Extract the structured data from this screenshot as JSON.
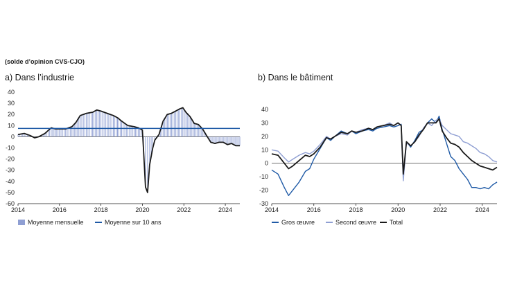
{
  "subtitle": "(solde d’opinion CVS-CJO)",
  "colors": {
    "dark": "#1a1a1a",
    "blue": "#1f5aa6",
    "lightblue": "#8f9fd3",
    "bar": "#8f9fd3",
    "avg": "#1f5aa6"
  },
  "chart_data": [
    {
      "type": "bar",
      "title": "a)  Dans l’industrie",
      "ylim": [
        -60,
        40
      ],
      "yticks": [
        40,
        30,
        20,
        10,
        0,
        -10,
        -20,
        -30,
        -40,
        -50,
        -60
      ],
      "xlim": [
        2014,
        2024.7
      ],
      "xticks": [
        2014,
        2016,
        2018,
        2020,
        2022,
        2024
      ],
      "grid": false,
      "legend": "bottom",
      "series": [
        {
          "name": "Moyenne mensuelle",
          "kind": "bar+line",
          "color": "#8f9fd3",
          "x": [
            2014.0,
            2014.3,
            2014.6,
            2014.8,
            2015.0,
            2015.3,
            2015.6,
            2015.8,
            2016.0,
            2016.3,
            2016.6,
            2016.8,
            2017.0,
            2017.3,
            2017.6,
            2017.8,
            2018.0,
            2018.3,
            2018.6,
            2018.8,
            2019.0,
            2019.3,
            2019.6,
            2019.8,
            2020.0,
            2020.05,
            2020.15,
            2020.25,
            2020.35,
            2020.5,
            2020.6,
            2020.8,
            2021.0,
            2021.2,
            2021.4,
            2021.6,
            2021.8,
            2021.95,
            2022.1,
            2022.3,
            2022.5,
            2022.7,
            2022.9,
            2023.1,
            2023.3,
            2023.5,
            2023.7,
            2023.9,
            2024.1,
            2024.3,
            2024.5,
            2024.7
          ],
          "values": [
            2,
            3,
            1,
            -1,
            0,
            3,
            8,
            7,
            7,
            7,
            9,
            13,
            19,
            21,
            22,
            24,
            23,
            21,
            19,
            17,
            14,
            10,
            9,
            8,
            6,
            -10,
            -45,
            -50,
            -25,
            -10,
            -3,
            2,
            14,
            20,
            21,
            23,
            25,
            26,
            22,
            18,
            12,
            11,
            7,
            1,
            -5,
            -6,
            -5,
            -5,
            -7,
            -6,
            -8,
            -8
          ]
        },
        {
          "name": "Moyenne sur 10 ans",
          "kind": "hline",
          "color": "#1f5aa6",
          "value": 7.5
        }
      ]
    },
    {
      "type": "line",
      "title": "b)  Dans le bâtiment",
      "ylim": [
        -30,
        40
      ],
      "yticks": [
        40,
        30,
        20,
        10,
        0,
        -10,
        -20,
        -30
      ],
      "xlim": [
        2014,
        2024.7
      ],
      "xticks": [
        2014,
        2016,
        2018,
        2020,
        2022,
        2024
      ],
      "grid": false,
      "legend": "bottom",
      "series": [
        {
          "name": "Gros œuvre",
          "color": "#1f5aa6",
          "x": [
            2014.0,
            2014.3,
            2014.6,
            2014.8,
            2015.0,
            2015.3,
            2015.6,
            2015.8,
            2016.0,
            2016.3,
            2016.6,
            2016.8,
            2017.0,
            2017.3,
            2017.6,
            2017.8,
            2018.0,
            2018.3,
            2018.6,
            2018.8,
            2019.0,
            2019.3,
            2019.6,
            2019.8,
            2020.0,
            2020.15,
            2020.25,
            2020.4,
            2020.6,
            2020.8,
            2021.0,
            2021.2,
            2021.4,
            2021.6,
            2021.8,
            2021.95,
            2022.1,
            2022.3,
            2022.5,
            2022.7,
            2022.9,
            2023.1,
            2023.3,
            2023.5,
            2023.7,
            2023.9,
            2024.1,
            2024.3,
            2024.5,
            2024.7
          ],
          "values": [
            -5,
            -8,
            -18,
            -24,
            -20,
            -14,
            -6,
            -4,
            3,
            11,
            19,
            17,
            20,
            24,
            22,
            24,
            22,
            24,
            25,
            24,
            26,
            27,
            28,
            27,
            28,
            29,
            -10,
            16,
            12,
            17,
            23,
            25,
            30,
            33,
            30,
            35,
            25,
            15,
            5,
            2,
            -4,
            -8,
            -12,
            -18,
            -18,
            -19,
            -18,
            -19,
            -16,
            -14
          ]
        },
        {
          "name": "Second œuvre",
          "color": "#8f9fd3",
          "x": [
            2014.0,
            2014.3,
            2014.6,
            2014.8,
            2015.0,
            2015.3,
            2015.6,
            2015.8,
            2016.0,
            2016.3,
            2016.6,
            2016.8,
            2017.0,
            2017.3,
            2017.6,
            2017.8,
            2018.0,
            2018.3,
            2018.6,
            2018.8,
            2019.0,
            2019.3,
            2019.6,
            2019.8,
            2020.0,
            2020.15,
            2020.25,
            2020.4,
            2020.6,
            2020.8,
            2021.0,
            2021.2,
            2021.4,
            2021.6,
            2021.8,
            2021.95,
            2022.1,
            2022.3,
            2022.5,
            2022.7,
            2022.9,
            2023.1,
            2023.3,
            2023.5,
            2023.7,
            2023.9,
            2024.1,
            2024.3,
            2024.5,
            2024.7
          ],
          "values": [
            10,
            9,
            4,
            1,
            3,
            6,
            8,
            7,
            9,
            14,
            20,
            18,
            20,
            22,
            21,
            24,
            23,
            25,
            26,
            25,
            27,
            28,
            30,
            28,
            30,
            28,
            -13,
            15,
            13,
            16,
            20,
            26,
            30,
            28,
            32,
            33,
            28,
            25,
            22,
            21,
            20,
            16,
            15,
            13,
            11,
            8,
            7,
            5,
            2,
            1
          ]
        },
        {
          "name": "Total",
          "color": "#1a1a1a",
          "x": [
            2014.0,
            2014.3,
            2014.6,
            2014.8,
            2015.0,
            2015.3,
            2015.6,
            2015.8,
            2016.0,
            2016.3,
            2016.6,
            2016.8,
            2017.0,
            2017.3,
            2017.6,
            2017.8,
            2018.0,
            2018.3,
            2018.6,
            2018.8,
            2019.0,
            2019.3,
            2019.6,
            2019.8,
            2020.0,
            2020.15,
            2020.25,
            2020.4,
            2020.6,
            2020.8,
            2021.0,
            2021.2,
            2021.4,
            2021.6,
            2021.8,
            2021.95,
            2022.1,
            2022.3,
            2022.5,
            2022.7,
            2022.9,
            2023.1,
            2023.3,
            2023.5,
            2023.7,
            2023.9,
            2024.1,
            2024.3,
            2024.5,
            2024.7
          ],
          "values": [
            7,
            6,
            0,
            -4,
            -2,
            2,
            6,
            5,
            7,
            12,
            19,
            18,
            20,
            23,
            22,
            24,
            23,
            24,
            26,
            25,
            27,
            28,
            29,
            28,
            30,
            28,
            -8,
            16,
            13,
            16,
            21,
            25,
            30,
            30,
            30,
            33,
            24,
            19,
            15,
            14,
            12,
            8,
            5,
            2,
            0,
            -2,
            -3,
            -4,
            -5,
            -3
          ]
        }
      ]
    }
  ]
}
